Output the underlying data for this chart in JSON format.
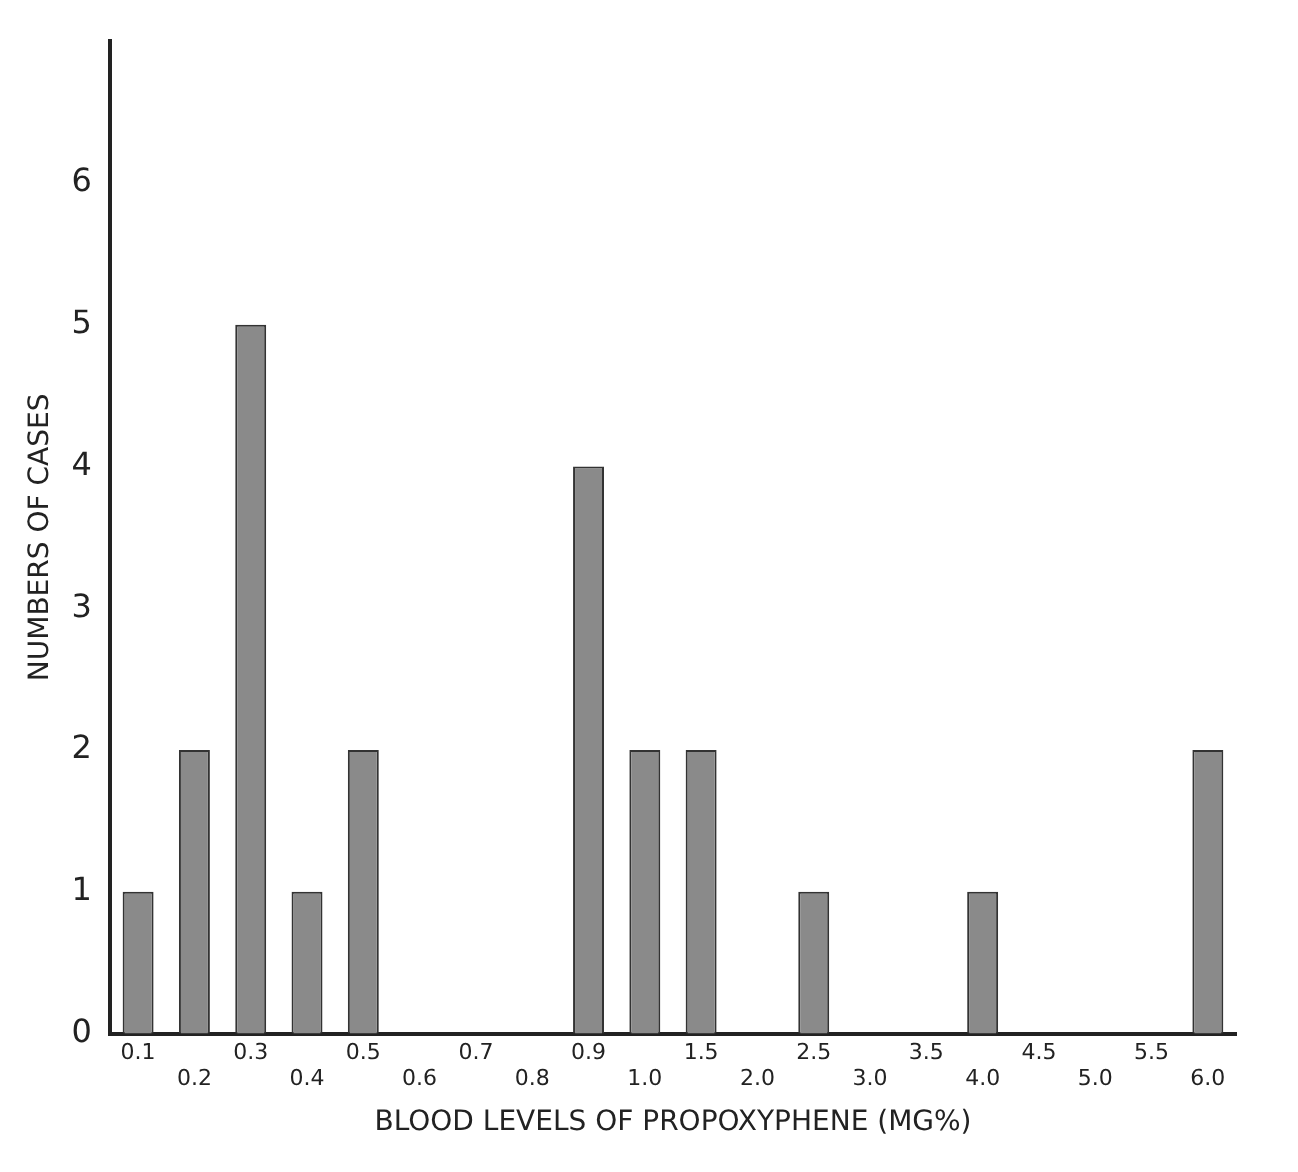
{
  "chart_data": {
    "type": "bar",
    "xlabel": "BLOOD LEVELS OF PROPOXYPHENE (MG%)",
    "ylabel": "NUMBERS OF CASES",
    "categories": [
      "0.1",
      "0.2",
      "0.3",
      "0.4",
      "0.5",
      "0.6",
      "0.7",
      "0.8",
      "0.9",
      "1.0",
      "1.5",
      "2.0",
      "2.5",
      "3.0",
      "3.5",
      "4.0",
      "4.5",
      "5.0",
      "5.5",
      "6.0"
    ],
    "values": [
      1,
      2,
      5,
      1,
      2,
      0,
      0,
      0,
      4,
      2,
      2,
      0,
      1,
      0,
      0,
      1,
      0,
      0,
      0,
      2
    ],
    "color": "#8a8a8a",
    "ylim": [
      0,
      7
    ],
    "yticks": [
      0,
      1,
      2,
      3,
      4,
      5,
      6
    ],
    "grid": false,
    "legend": false
  }
}
